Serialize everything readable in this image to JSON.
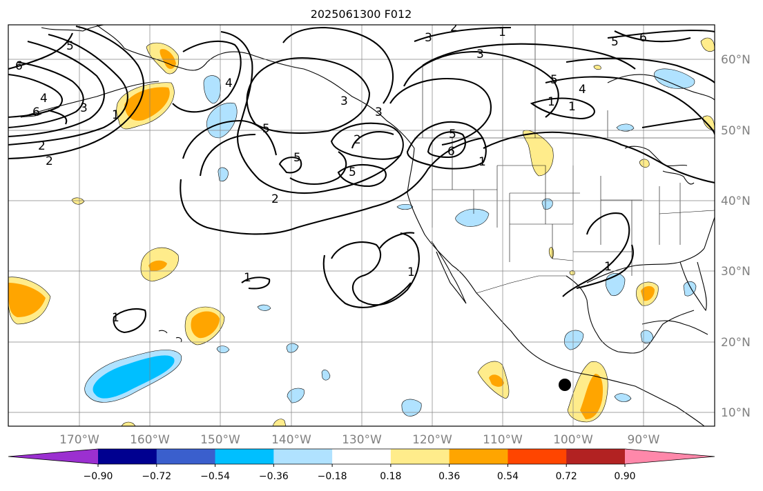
{
  "title": "2025061300 F012",
  "lon_labels": [
    "170°W",
    "160°W",
    "150°W",
    "140°W",
    "130°W",
    "120°W",
    "110°W",
    "100°W",
    "90°W"
  ],
  "lat_labels": [
    "60°N",
    "50°N",
    "40°N",
    "30°N",
    "20°N",
    "10°N"
  ],
  "colorbar": {
    "tick_labels": [
      "−0.90",
      "−0.72",
      "−0.54",
      "−0.36",
      "−0.18",
      "0.18",
      "0.36",
      "0.54",
      "0.72",
      "0.90"
    ],
    "colors": [
      "#9b30d0",
      "#000090",
      "#3a5fcd",
      "#00bfff",
      "#b0e2ff",
      "#ffffff",
      "#ffec8b",
      "#ffa500",
      "#ff4500",
      "#b22222",
      "#ff88aa"
    ]
  },
  "contour_labels": [
    "6",
    "5",
    "4",
    "3",
    "2",
    "1",
    "6",
    "2",
    "5",
    "3",
    "4",
    "5",
    "1",
    "2",
    "3",
    "5",
    "5",
    "3",
    "2",
    "6",
    "5",
    "1",
    "5",
    "6",
    "3",
    "1",
    "4",
    "2",
    "1",
    "1",
    "1",
    "1",
    "1"
  ],
  "marker": "storm-center-dot"
}
